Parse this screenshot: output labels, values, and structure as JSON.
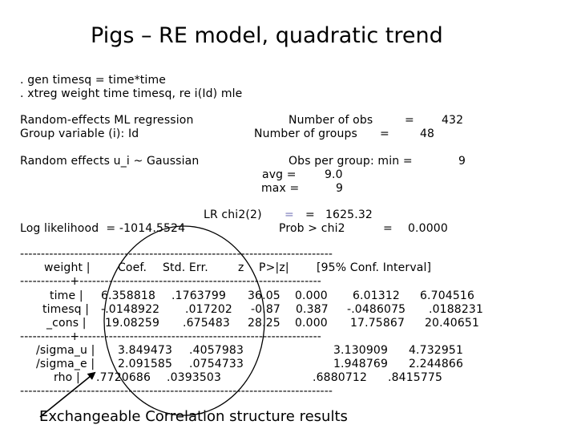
{
  "title": "Pigs – RE model, quadratic trend",
  "commands": [
    ". gen timesq = time*time",
    ". xtreg weight time timesq, re i(Id) mle"
  ],
  "header": {
    "model": "Random-effects ML regression",
    "group_var": "Group variable (i): Id",
    "nobs_label": "Number of obs",
    "eq1": "=",
    "nobs": "432",
    "ngroups_label": "Number of groups",
    "eq2": "=",
    "ngroups": "48",
    "re_dist": "Random effects u_i ~ Gaussian",
    "obs_min_label": "Obs per group: min =",
    "obs_min": "9",
    "obs_avg_label": "avg =",
    "obs_avg": "9.0",
    "obs_max_label": "max =",
    "obs_max": "9",
    "lr_label": "LR chi2(2)",
    "lr_sym": "=",
    "lr_eq": "=",
    "lr_value": "1625.32",
    "loglik": "Log likelihood  = -1014.5524",
    "prob_label": "Prob > chi2",
    "prob_eq": "=",
    "prob_value": "0.0000"
  },
  "table": {
    "rule": "---------------------------------------------------------------------------",
    "sep": "------------+----------------------------------------------------------",
    "columns": {
      "var": "weight |",
      "coef": "Coef.",
      "se": "Std. Err.",
      "z": "z",
      "p": "P>|z|",
      "ci": "[95% Conf. Interval]"
    },
    "rows": [
      {
        "name": "time |",
        "coef": "6.358818",
        "se": ".1763799",
        "z": "36.05",
        "p": "0.000",
        "lo": "6.01312",
        "hi": "6.704516"
      },
      {
        "name": "timesq |",
        "coef": "-.0148922",
        "se": ".017202",
        "z": "-0.87",
        "p": "0.387",
        "lo": "-.0486075",
        "hi": ".0188231"
      },
      {
        "name": "_cons |",
        "coef": "19.08259",
        "se": ".675483",
        "z": "28.25",
        "p": "0.000",
        "lo": "17.75867",
        "hi": "20.40651"
      }
    ],
    "re_rows": [
      {
        "name": "/sigma_u |",
        "coef": "3.849473",
        "se": ".4057983",
        "lo": "3.130909",
        "hi": "4.732951"
      },
      {
        "name": "/sigma_e |",
        "coef": "2.091585",
        "se": ".0754733",
        "lo": "1.948769",
        "hi": "2.244866"
      },
      {
        "name": "rho |",
        "coef": ".7720686",
        "se": ".0393503",
        "lo": ".6880712",
        "hi": ".8415775"
      }
    ]
  },
  "caption": "Exchangeable Correlation structure results"
}
